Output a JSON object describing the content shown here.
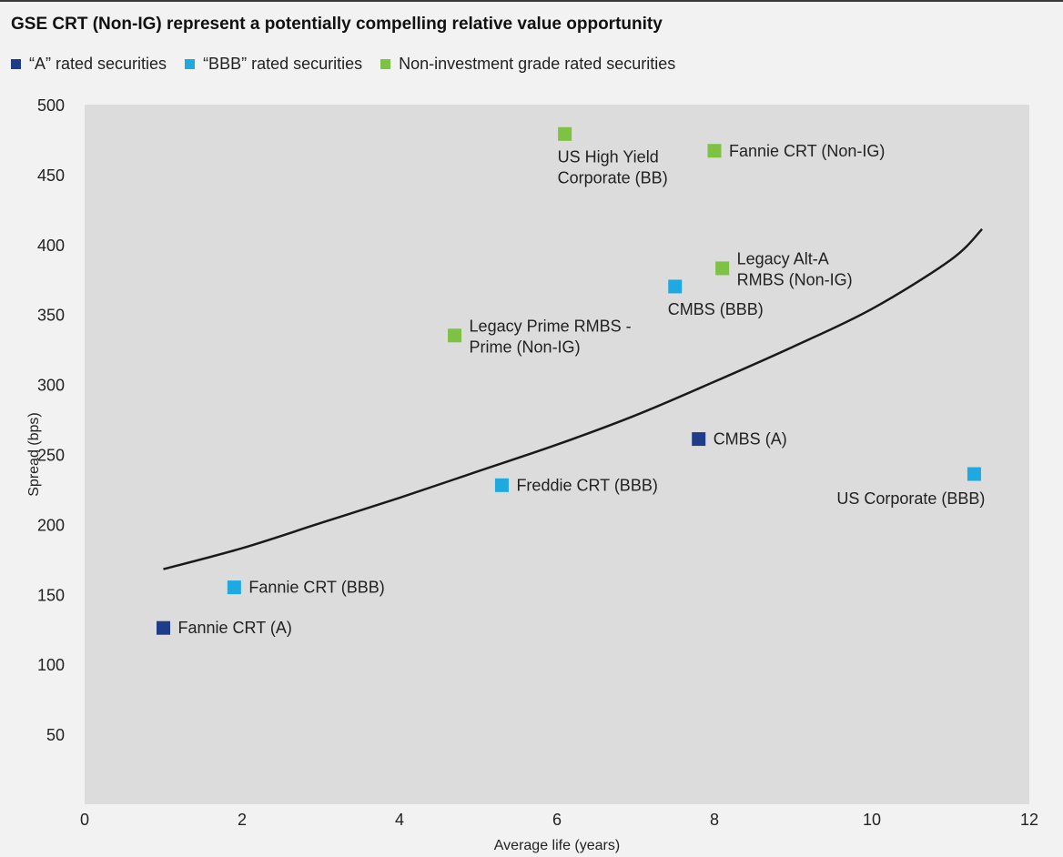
{
  "chart_data": {
    "type": "scatter",
    "title": "GSE CRT (Non-IG) represent a potentially compelling relative value opportunity",
    "xlabel": "Average life (years)",
    "ylabel": "Spread (bps)",
    "xlim": [
      0,
      12
    ],
    "ylim": [
      0,
      500
    ],
    "xticks": [
      0,
      2,
      4,
      6,
      8,
      10,
      12
    ],
    "xtick_labels": [
      "0",
      "2",
      "4",
      "6",
      "8",
      "10",
      "12"
    ],
    "yticks": [
      50,
      100,
      150,
      200,
      250,
      300,
      350,
      400,
      450,
      500
    ],
    "ytick_labels": [
      "50",
      "100",
      "150",
      "200",
      "250",
      "300",
      "350",
      "400",
      "450",
      "500"
    ],
    "grid": false,
    "legend_placement": "top-left",
    "series": [
      {
        "name": "“A” rated securities",
        "color": "#1f3c88",
        "points": [
          {
            "x": 1.0,
            "y": 126,
            "label": [
              "Fannie CRT (A)"
            ],
            "label_pos": "right"
          },
          {
            "x": 7.8,
            "y": 261,
            "label": [
              "CMBS (A)"
            ],
            "label_pos": "right"
          }
        ]
      },
      {
        "name": "“BBB” rated securities",
        "color": "#1fa9e1",
        "points": [
          {
            "x": 1.9,
            "y": 155,
            "label": [
              "Fannie CRT (BBB)"
            ],
            "label_pos": "right"
          },
          {
            "x": 5.3,
            "y": 228,
            "label": [
              "Freddie CRT (BBB)"
            ],
            "label_pos": "right"
          },
          {
            "x": 7.5,
            "y": 370,
            "label": [
              "CMBS (BBB)"
            ],
            "label_pos": "below"
          },
          {
            "x": 11.3,
            "y": 236,
            "label": [
              "US Corporate (BBB)"
            ],
            "label_pos": "below-left"
          }
        ]
      },
      {
        "name": "Non-investment grade rated securities",
        "color": "#7dc242",
        "points": [
          {
            "x": 4.7,
            "y": 335,
            "label": [
              "Legacy Prime RMBS -",
              "Prime (Non-IG)"
            ],
            "label_pos": "right"
          },
          {
            "x": 6.1,
            "y": 479,
            "label": [
              "US High Yield",
              "Corporate (BB)"
            ],
            "label_pos": "below"
          },
          {
            "x": 8.0,
            "y": 467,
            "label": [
              "Fannie CRT (Non-IG)"
            ],
            "label_pos": "right"
          },
          {
            "x": 8.1,
            "y": 383,
            "label": [
              "Legacy Alt-A",
              "RMBS (Non-IG)"
            ],
            "label_pos": "right"
          }
        ]
      }
    ],
    "trendline": {
      "color": "#1a1a1a",
      "x": [
        1.0,
        2.0,
        3.0,
        4.0,
        5.0,
        6.0,
        7.0,
        8.0,
        9.0,
        10.0,
        11.0,
        11.4
      ],
      "y": [
        168,
        183,
        201,
        219,
        238,
        257,
        278,
        302,
        327,
        354,
        389,
        411
      ]
    },
    "colors": {
      "plot_background": "#dcdcdc",
      "figure_background": "#f2f2f2",
      "text": "#222222"
    }
  }
}
